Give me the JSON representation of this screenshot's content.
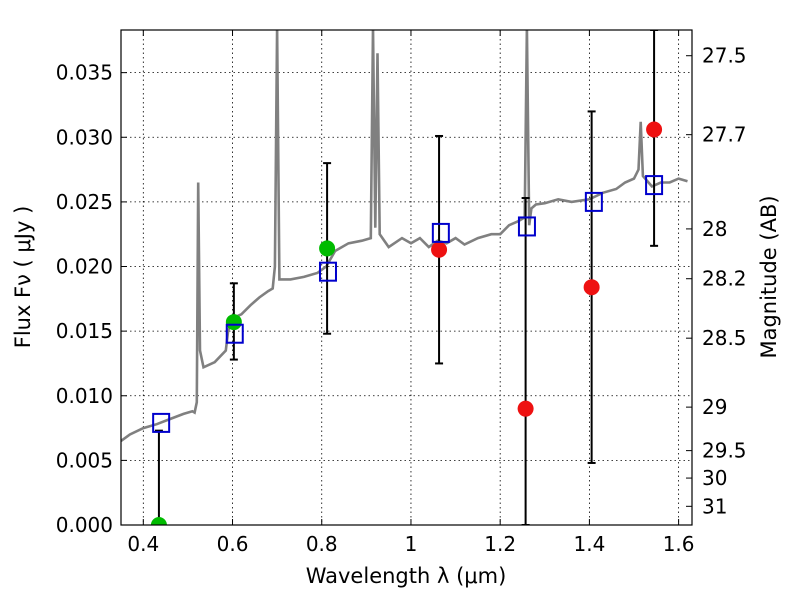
{
  "chart_data": {
    "type": "scatter",
    "xlabel": "Wavelength  λ (μm)",
    "ylabel": "Flux  Fν  ( μJy )",
    "y2label": "Magnitude (AB)",
    "xlim": [
      0.35,
      1.63
    ],
    "ylim": [
      0.0,
      0.0383
    ],
    "x_ticks": [
      0.4,
      0.6,
      0.8,
      1.0,
      1.2,
      1.4,
      1.6
    ],
    "x_tick_labels": [
      "0.4",
      "0.6",
      "0.8",
      "1",
      "1.2",
      "1.4",
      "1.6"
    ],
    "y_ticks": [
      0.0,
      0.005,
      0.01,
      0.015,
      0.02,
      0.025,
      0.03,
      0.035
    ],
    "y_tick_labels": [
      "0.000",
      "0.005",
      "0.010",
      "0.015",
      "0.020",
      "0.025",
      "0.030",
      "0.035"
    ],
    "y2_ticks": [
      27.5,
      27.7,
      28,
      28.2,
      28.5,
      29,
      29.5,
      30,
      31
    ],
    "y2_tick_labels": [
      "27.5",
      "27.7",
      "28",
      "28.2",
      "28.5",
      "29",
      "29.5",
      "30",
      "31"
    ],
    "grid": true,
    "colors": {
      "model": "#808080",
      "model_photometry": "#0000cc",
      "observed_detected": "#00bb00",
      "observed_other": "#ee1111",
      "errorbar": "#000000"
    },
    "model_spectrum": {
      "x": [
        0.35,
        0.37,
        0.4,
        0.43,
        0.46,
        0.49,
        0.51,
        0.515,
        0.52,
        0.523,
        0.527,
        0.535,
        0.56,
        0.585,
        0.59,
        0.6,
        0.62,
        0.64,
        0.66,
        0.68,
        0.69,
        0.695,
        0.7,
        0.705,
        0.71,
        0.73,
        0.76,
        0.79,
        0.81,
        0.83,
        0.86,
        0.89,
        0.91,
        0.915,
        0.92,
        0.925,
        0.93,
        0.95,
        0.98,
        1.0,
        1.02,
        1.04,
        1.06,
        1.08,
        1.1,
        1.12,
        1.15,
        1.18,
        1.2,
        1.22,
        1.24,
        1.255,
        1.26,
        1.265,
        1.27,
        1.28,
        1.3,
        1.33,
        1.36,
        1.4,
        1.43,
        1.46,
        1.48,
        1.5,
        1.51,
        1.515,
        1.52,
        1.54,
        1.56,
        1.58,
        1.6,
        1.62
      ],
      "y": [
        0.0065,
        0.007,
        0.0075,
        0.0078,
        0.0082,
        0.0086,
        0.0088,
        0.0087,
        0.0095,
        0.0265,
        0.0135,
        0.0122,
        0.0126,
        0.0135,
        0.015,
        0.016,
        0.0163,
        0.017,
        0.0176,
        0.0181,
        0.0183,
        0.02,
        0.0385,
        0.019,
        0.019,
        0.019,
        0.0192,
        0.0195,
        0.02,
        0.0212,
        0.0218,
        0.022,
        0.0222,
        0.0385,
        0.023,
        0.0365,
        0.0225,
        0.0215,
        0.0222,
        0.0218,
        0.0222,
        0.0215,
        0.022,
        0.0218,
        0.0222,
        0.0217,
        0.0222,
        0.0225,
        0.0225,
        0.0232,
        0.0235,
        0.0238,
        0.0385,
        0.0232,
        0.0245,
        0.0248,
        0.0249,
        0.0252,
        0.025,
        0.0252,
        0.0257,
        0.026,
        0.0265,
        0.0268,
        0.0275,
        0.0312,
        0.027,
        0.0262,
        0.0265,
        0.0265,
        0.0268,
        0.0266
      ]
    },
    "model_photometry": {
      "x": [
        0.44,
        0.605,
        0.814,
        1.067,
        1.26,
        1.41,
        1.545
      ],
      "y": [
        0.0079,
        0.0148,
        0.0196,
        0.0226,
        0.0231,
        0.025,
        0.0263
      ]
    },
    "observed": [
      {
        "x": 0.435,
        "y": 0.0,
        "err_low": 0.0,
        "err_high": 0.0073,
        "color": "#00bb00"
      },
      {
        "x": 0.603,
        "y": 0.0157,
        "err_low": 0.0128,
        "err_high": 0.0187,
        "color": "#00bb00"
      },
      {
        "x": 0.812,
        "y": 0.0214,
        "err_low": 0.0148,
        "err_high": 0.028,
        "color": "#00bb00"
      },
      {
        "x": 1.063,
        "y": 0.0213,
        "err_low": 0.0125,
        "err_high": 0.0301,
        "color": "#ee1111"
      },
      {
        "x": 1.257,
        "y": 0.009,
        "err_low": 0.0,
        "err_high": 0.0253,
        "color": "#ee1111"
      },
      {
        "x": 1.405,
        "y": 0.0184,
        "err_low": 0.0048,
        "err_high": 0.032,
        "color": "#ee1111"
      },
      {
        "x": 1.545,
        "y": 0.0306,
        "err_low": 0.0216,
        "err_high": 0.0383,
        "color": "#ee1111"
      }
    ]
  }
}
